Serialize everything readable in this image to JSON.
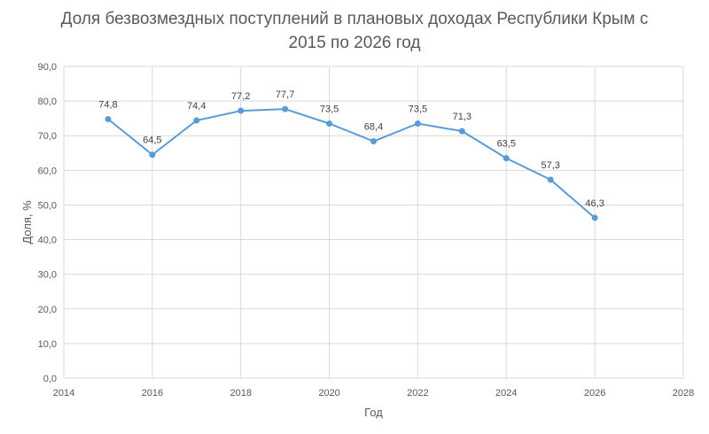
{
  "chart_data": {
    "type": "scatter",
    "title_line1": "Доля безвозмездных поступлений в плановых доходах Республики Крым с",
    "title_line2": "2015 по 2026 год",
    "xlabel": "Год",
    "ylabel": "Доля, %",
    "xlim": [
      2014,
      2028
    ],
    "ylim": [
      0,
      90
    ],
    "x_ticks": [
      2014,
      2016,
      2018,
      2020,
      2022,
      2024,
      2026,
      2028
    ],
    "x_tick_labels": [
      "2014",
      "2016",
      "2018",
      "2020",
      "2022",
      "2024",
      "2026",
      "2028"
    ],
    "y_ticks": [
      0,
      10,
      20,
      30,
      40,
      50,
      60,
      70,
      80,
      90
    ],
    "y_tick_labels": [
      "0,0",
      "10,0",
      "20,0",
      "30,0",
      "40,0",
      "50,0",
      "60,0",
      "70,0",
      "80,0",
      "90,0"
    ],
    "grid": true,
    "legend": "none",
    "series": [
      {
        "x": [
          2015,
          2016,
          2017,
          2018,
          2019,
          2020,
          2021,
          2022,
          2023,
          2024,
          2025,
          2026
        ],
        "values": [
          74.8,
          64.5,
          74.4,
          77.2,
          77.7,
          73.5,
          68.4,
          73.5,
          71.3,
          63.5,
          57.3,
          46.3
        ],
        "labels": [
          "74,8",
          "64,5",
          "74,4",
          "77,2",
          "77,7",
          "73,5",
          "68,4",
          "73,5",
          "71,3",
          "63,5",
          "57,3",
          "46,3"
        ],
        "color": "#5b9bd5"
      }
    ]
  }
}
